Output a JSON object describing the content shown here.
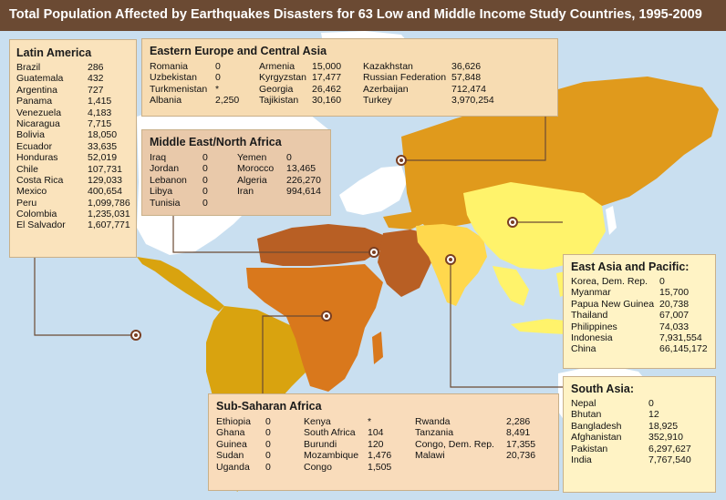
{
  "title": "Total Population Affected by Earthquakes Disasters for 63 Low and Middle Income Study Countries, 1995-2009",
  "colors": {
    "ocean": "#c9dff0",
    "title_bg": "#6b4a33",
    "latin_america": "#d9a30f",
    "eastern_europe_central_asia": "#e09a1c",
    "middle_east_north_africa": "#b85f24",
    "sub_saharan_africa": "#d9781c",
    "east_asia_pacific": "#fff36b",
    "south_asia": "#ffd84d",
    "high_income": "#ffffff",
    "leader_line": "#6b4a33"
  },
  "regions": {
    "latin_america": {
      "name": "Latin America",
      "rows": [
        {
          "country": "Brazil",
          "value": "286"
        },
        {
          "country": "Guatemala",
          "value": "432"
        },
        {
          "country": "Argentina",
          "value": "727"
        },
        {
          "country": "Panama",
          "value": "1,415"
        },
        {
          "country": "Venezuela",
          "value": "4,183"
        },
        {
          "country": "Nicaragua",
          "value": "7,715"
        },
        {
          "country": "Bolivia",
          "value": "18,050"
        },
        {
          "country": "Ecuador",
          "value": "33,635"
        },
        {
          "country": "Honduras",
          "value": "52,019"
        },
        {
          "country": "Chile",
          "value": "107,731"
        },
        {
          "country": "Costa Rica",
          "value": "129,033"
        },
        {
          "country": "Mexico",
          "value": "400,654"
        },
        {
          "country": "Peru",
          "value": "1,099,786"
        },
        {
          "country": "Colombia",
          "value": "1,235,031"
        },
        {
          "country": "El Salvador",
          "value": "1,607,771"
        }
      ]
    },
    "eastern_europe_central_asia": {
      "name": "Eastern Europe and Central Asia",
      "rows": [
        {
          "country": "Romania",
          "value": "0"
        },
        {
          "country": "Uzbekistan",
          "value": "0"
        },
        {
          "country": "Turkmenistan",
          "value": "*"
        },
        {
          "country": "Albania",
          "value": "2,250"
        },
        {
          "country": "Armenia",
          "value": "15,000"
        },
        {
          "country": "Kyrgyzstan",
          "value": "17,477"
        },
        {
          "country": "Georgia",
          "value": "26,462"
        },
        {
          "country": "Tajikistan",
          "value": "30,160"
        },
        {
          "country": "Kazakhstan",
          "value": "36,626"
        },
        {
          "country": "Russian Federation",
          "value": "57,848"
        },
        {
          "country": "Azerbaijan",
          "value": "712,474"
        },
        {
          "country": "Turkey",
          "value": "3,970,254"
        }
      ]
    },
    "middle_east_north_africa": {
      "name": "Middle East/North Africa",
      "rows": [
        {
          "country": "Iraq",
          "value": "0"
        },
        {
          "country": "Jordan",
          "value": "0"
        },
        {
          "country": "Lebanon",
          "value": "0"
        },
        {
          "country": "Libya",
          "value": "0"
        },
        {
          "country": "Tunisia",
          "value": "0"
        },
        {
          "country": "Yemen",
          "value": "0"
        },
        {
          "country": "Morocco",
          "value": "13,465"
        },
        {
          "country": "Algeria",
          "value": "226,270"
        },
        {
          "country": "Iran",
          "value": "994,614"
        }
      ]
    },
    "east_asia_pacific": {
      "name": "East Asia and Pacific:",
      "rows": [
        {
          "country": "Korea, Dem. Rep.",
          "value": "0"
        },
        {
          "country": "Myanmar",
          "value": "15,700"
        },
        {
          "country": "Papua New Guinea",
          "value": "20,738"
        },
        {
          "country": "Thailand",
          "value": "67,007"
        },
        {
          "country": "Philippines",
          "value": "74,033"
        },
        {
          "country": "Indonesia",
          "value": "7,931,554"
        },
        {
          "country": "China",
          "value": "66,145,172"
        }
      ]
    },
    "south_asia": {
      "name": "South Asia:",
      "rows": [
        {
          "country": "Nepal",
          "value": "0"
        },
        {
          "country": "Bhutan",
          "value": "12"
        },
        {
          "country": "Bangladesh",
          "value": "18,925"
        },
        {
          "country": "Afghanistan",
          "value": "352,910"
        },
        {
          "country": "Pakistan",
          "value": "6,297,627"
        },
        {
          "country": "India",
          "value": "7,767,540"
        }
      ]
    },
    "sub_saharan_africa": {
      "name": "Sub-Saharan Africa",
      "rows": [
        {
          "country": "Ethiopia",
          "value": "0"
        },
        {
          "country": "Ghana",
          "value": "0"
        },
        {
          "country": "Guinea",
          "value": "0"
        },
        {
          "country": "Sudan",
          "value": "0"
        },
        {
          "country": "Uganda",
          "value": "0"
        },
        {
          "country": "Kenya",
          "value": "*"
        },
        {
          "country": "South Africa",
          "value": "104"
        },
        {
          "country": "Burundi",
          "value": "120"
        },
        {
          "country": "Mozambique",
          "value": "1,476"
        },
        {
          "country": "Congo",
          "value": "1,505"
        },
        {
          "country": "Rwanda",
          "value": "2,286"
        },
        {
          "country": "Tanzania",
          "value": "8,491"
        },
        {
          "country": "Congo, Dem. Rep.",
          "value": "17,355"
        },
        {
          "country": "Malawi",
          "value": "20,736"
        }
      ]
    }
  }
}
